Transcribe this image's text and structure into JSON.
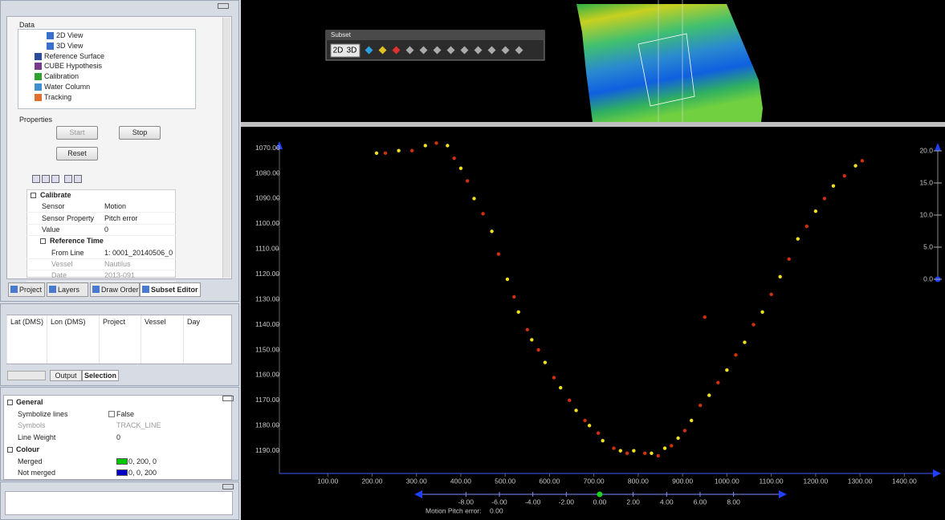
{
  "data_panel": {
    "title": "Data",
    "tree": [
      "2D View",
      "3D View",
      "Reference Surface",
      "CUBE Hypothesis",
      "Calibration",
      "Water Column",
      "Tracking"
    ],
    "properties_title": "Properties",
    "buttons": [
      "Start",
      "Stop",
      "Reset"
    ],
    "sections": [
      {
        "title": "Calibrate",
        "rows": [
          [
            "Sensor",
            "Motion"
          ],
          [
            "Sensor Property",
            "Pitch error"
          ],
          [
            "Value",
            0
          ]
        ]
      },
      {
        "title": "Reference Time",
        "rows": [
          [
            "From Line",
            "1: 0001_20140506_0"
          ],
          [
            "Vessel",
            "Nautilus"
          ],
          [
            "Date",
            "2013-091"
          ]
        ]
      }
    ],
    "tabs": [
      "Project",
      "Layers",
      "Draw Order",
      "Subset Editor"
    ]
  },
  "selection_panel": {
    "columns": [
      "Lat (DMS)",
      "Lon (DMS)",
      "Project",
      "Vessel",
      "Day"
    ],
    "tabs": [
      "Output",
      "Selection"
    ]
  },
  "display_panel": {
    "sections": [
      {
        "title": "General",
        "rows": [
          [
            "Symbolize lines",
            "False"
          ],
          [
            "Symbols",
            "TRACK_LINE"
          ],
          [
            "Line Weight",
            0
          ]
        ]
      },
      {
        "title": "Colour",
        "rows": [
          [
            "Merged",
            "0, 200, 0"
          ],
          [
            "Not merged",
            "0, 0, 200"
          ]
        ]
      }
    ]
  },
  "subset_toolbar": {
    "title": "Subset",
    "buttons": [
      "2D",
      "3D"
    ]
  },
  "chart_data": {
    "type": "scatter",
    "xlim": [
      -9,
      1470
    ],
    "xticks": [
      {
        "value": 100,
        "label": "100.00"
      },
      {
        "value": 200,
        "label": "200.00"
      },
      {
        "value": 300,
        "label": "300.00"
      },
      {
        "value": 400,
        "label": "400.00"
      },
      {
        "value": 500,
        "label": "500.00"
      },
      {
        "value": 600,
        "label": "600.00"
      },
      {
        "value": 700,
        "label": "700.00"
      },
      {
        "value": 800,
        "label": "800.00"
      },
      {
        "value": 900,
        "label": "900.00"
      },
      {
        "value": 1000,
        "label": "1000.00"
      },
      {
        "value": 1100,
        "label": "1100.00"
      },
      {
        "value": 1200,
        "label": "1200.00"
      },
      {
        "value": 1300,
        "label": "1300.00"
      },
      {
        "value": 1400,
        "label": "1400.00"
      }
    ],
    "ylim": [
      1066,
      1199
    ],
    "y_inverted": true,
    "yticks": [
      {
        "value": 1070,
        "label": "1070.00"
      },
      {
        "value": 1080,
        "label": "1080.00"
      },
      {
        "value": 1090,
        "label": "1090.00"
      },
      {
        "value": 1100,
        "label": "1100.00"
      },
      {
        "value": 1110,
        "label": "1110.00"
      },
      {
        "value": 1120,
        "label": "1120.00"
      },
      {
        "value": 1130,
        "label": "1130.00"
      },
      {
        "value": 1140,
        "label": "1140.00"
      },
      {
        "value": 1150,
        "label": "1150.00"
      },
      {
        "value": 1160,
        "label": "1160.00"
      },
      {
        "value": 1170,
        "label": "1170.00"
      },
      {
        "value": 1180,
        "label": "1180.00"
      },
      {
        "value": 1190,
        "label": "1190.00"
      }
    ],
    "y2lim": [
      0,
      21
    ],
    "y2ticks": [
      {
        "value": 20,
        "label": "20.0"
      },
      {
        "value": 15,
        "label": "15.0"
      },
      {
        "value": 10,
        "label": "10.0"
      },
      {
        "value": 5,
        "label": "5.0"
      },
      {
        "value": 0,
        "label": "0.0"
      }
    ],
    "series": [
      {
        "color": "#f0e020",
        "x": [
          210,
          260,
          320,
          370,
          400,
          430,
          470,
          505,
          530,
          560,
          590,
          625,
          660,
          690,
          720,
          760,
          790,
          830,
          860,
          890,
          920,
          960,
          1000,
          1040,
          1080,
          1120,
          1160,
          1200,
          1240,
          1290
        ],
        "values": [
          1072,
          1071,
          1069,
          1069,
          1078,
          1090,
          1103,
          1122,
          1135,
          1146,
          1155,
          1165,
          1174,
          1180,
          1186,
          1190,
          1190,
          1191,
          1189,
          1185,
          1178,
          1168,
          1158,
          1147,
          1135,
          1121,
          1106,
          1095,
          1085,
          1077
        ]
      },
      {
        "color": "#d03010",
        "x": [
          230,
          290,
          345,
          385,
          415,
          450,
          485,
          520,
          550,
          575,
          610,
          645,
          680,
          710,
          745,
          775,
          815,
          845,
          875,
          905,
          940,
          980,
          1020,
          1060,
          1100,
          1140,
          1180,
          1220,
          1265,
          1305,
          950
        ],
        "values": [
          1072,
          1071,
          1068,
          1074,
          1083,
          1096,
          1112,
          1129,
          1142,
          1150,
          1161,
          1170,
          1178,
          1183,
          1189,
          1191,
          1191,
          1192,
          1188,
          1182,
          1172,
          1163,
          1152,
          1140,
          1128,
          1114,
          1101,
          1090,
          1081,
          1075,
          1137
        ]
      }
    ]
  },
  "slider": {
    "label": "Motion Pitch error:",
    "lim": [
      -10.8,
      10.9
    ],
    "value": 0,
    "value_label": "0.00",
    "ticks": [
      {
        "value": -8,
        "label": "-8.00"
      },
      {
        "value": -6,
        "label": "-6.00"
      },
      {
        "value": -4,
        "label": "-4.00"
      },
      {
        "value": -2,
        "label": "-2.00"
      },
      {
        "value": 0,
        "label": "0.00"
      },
      {
        "value": 2,
        "label": "2.00"
      },
      {
        "value": 4,
        "label": "4.00"
      },
      {
        "value": 6,
        "label": "6.00"
      },
      {
        "value": 8,
        "label": "8.00"
      }
    ]
  }
}
